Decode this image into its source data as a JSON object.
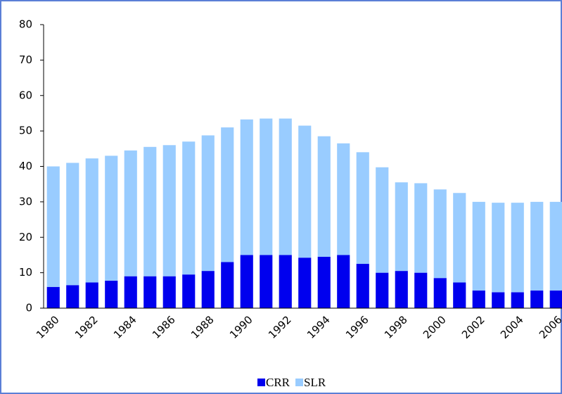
{
  "chart_data": {
    "type": "stacked-bar",
    "categories": [
      "1980",
      null,
      "1982",
      null,
      "1984",
      null,
      "1986",
      null,
      "1988",
      null,
      "1990",
      null,
      "1992",
      null,
      "1994",
      null,
      "1996",
      null,
      "1998",
      null,
      "2000",
      null,
      "2002",
      null,
      "2004",
      null,
      "2006"
    ],
    "series": [
      {
        "name": "CRR",
        "color": "#0000ee",
        "values": [
          6,
          6.5,
          7.25,
          7.75,
          9,
          9,
          9,
          9.5,
          10.5,
          13,
          15,
          15,
          15,
          14.25,
          14.5,
          15,
          12.5,
          10,
          10.5,
          10,
          8.5,
          7.25,
          5,
          4.5,
          4.5,
          5,
          5
        ]
      },
      {
        "name": "SLR",
        "color": "#99ccff",
        "values": [
          34,
          34.5,
          35,
          35.25,
          35.5,
          36.5,
          37,
          37.5,
          38.25,
          38,
          38.25,
          38.5,
          38.5,
          37.25,
          34,
          31.5,
          31.5,
          29.75,
          25,
          25.25,
          25,
          25.25,
          25,
          25.25,
          25.25,
          25,
          25
        ]
      }
    ],
    "ylim": [
      0,
      80
    ],
    "yticks": [
      0,
      10,
      20,
      30,
      40,
      50,
      60,
      70,
      80
    ],
    "grid": false,
    "legend": "bottom"
  }
}
